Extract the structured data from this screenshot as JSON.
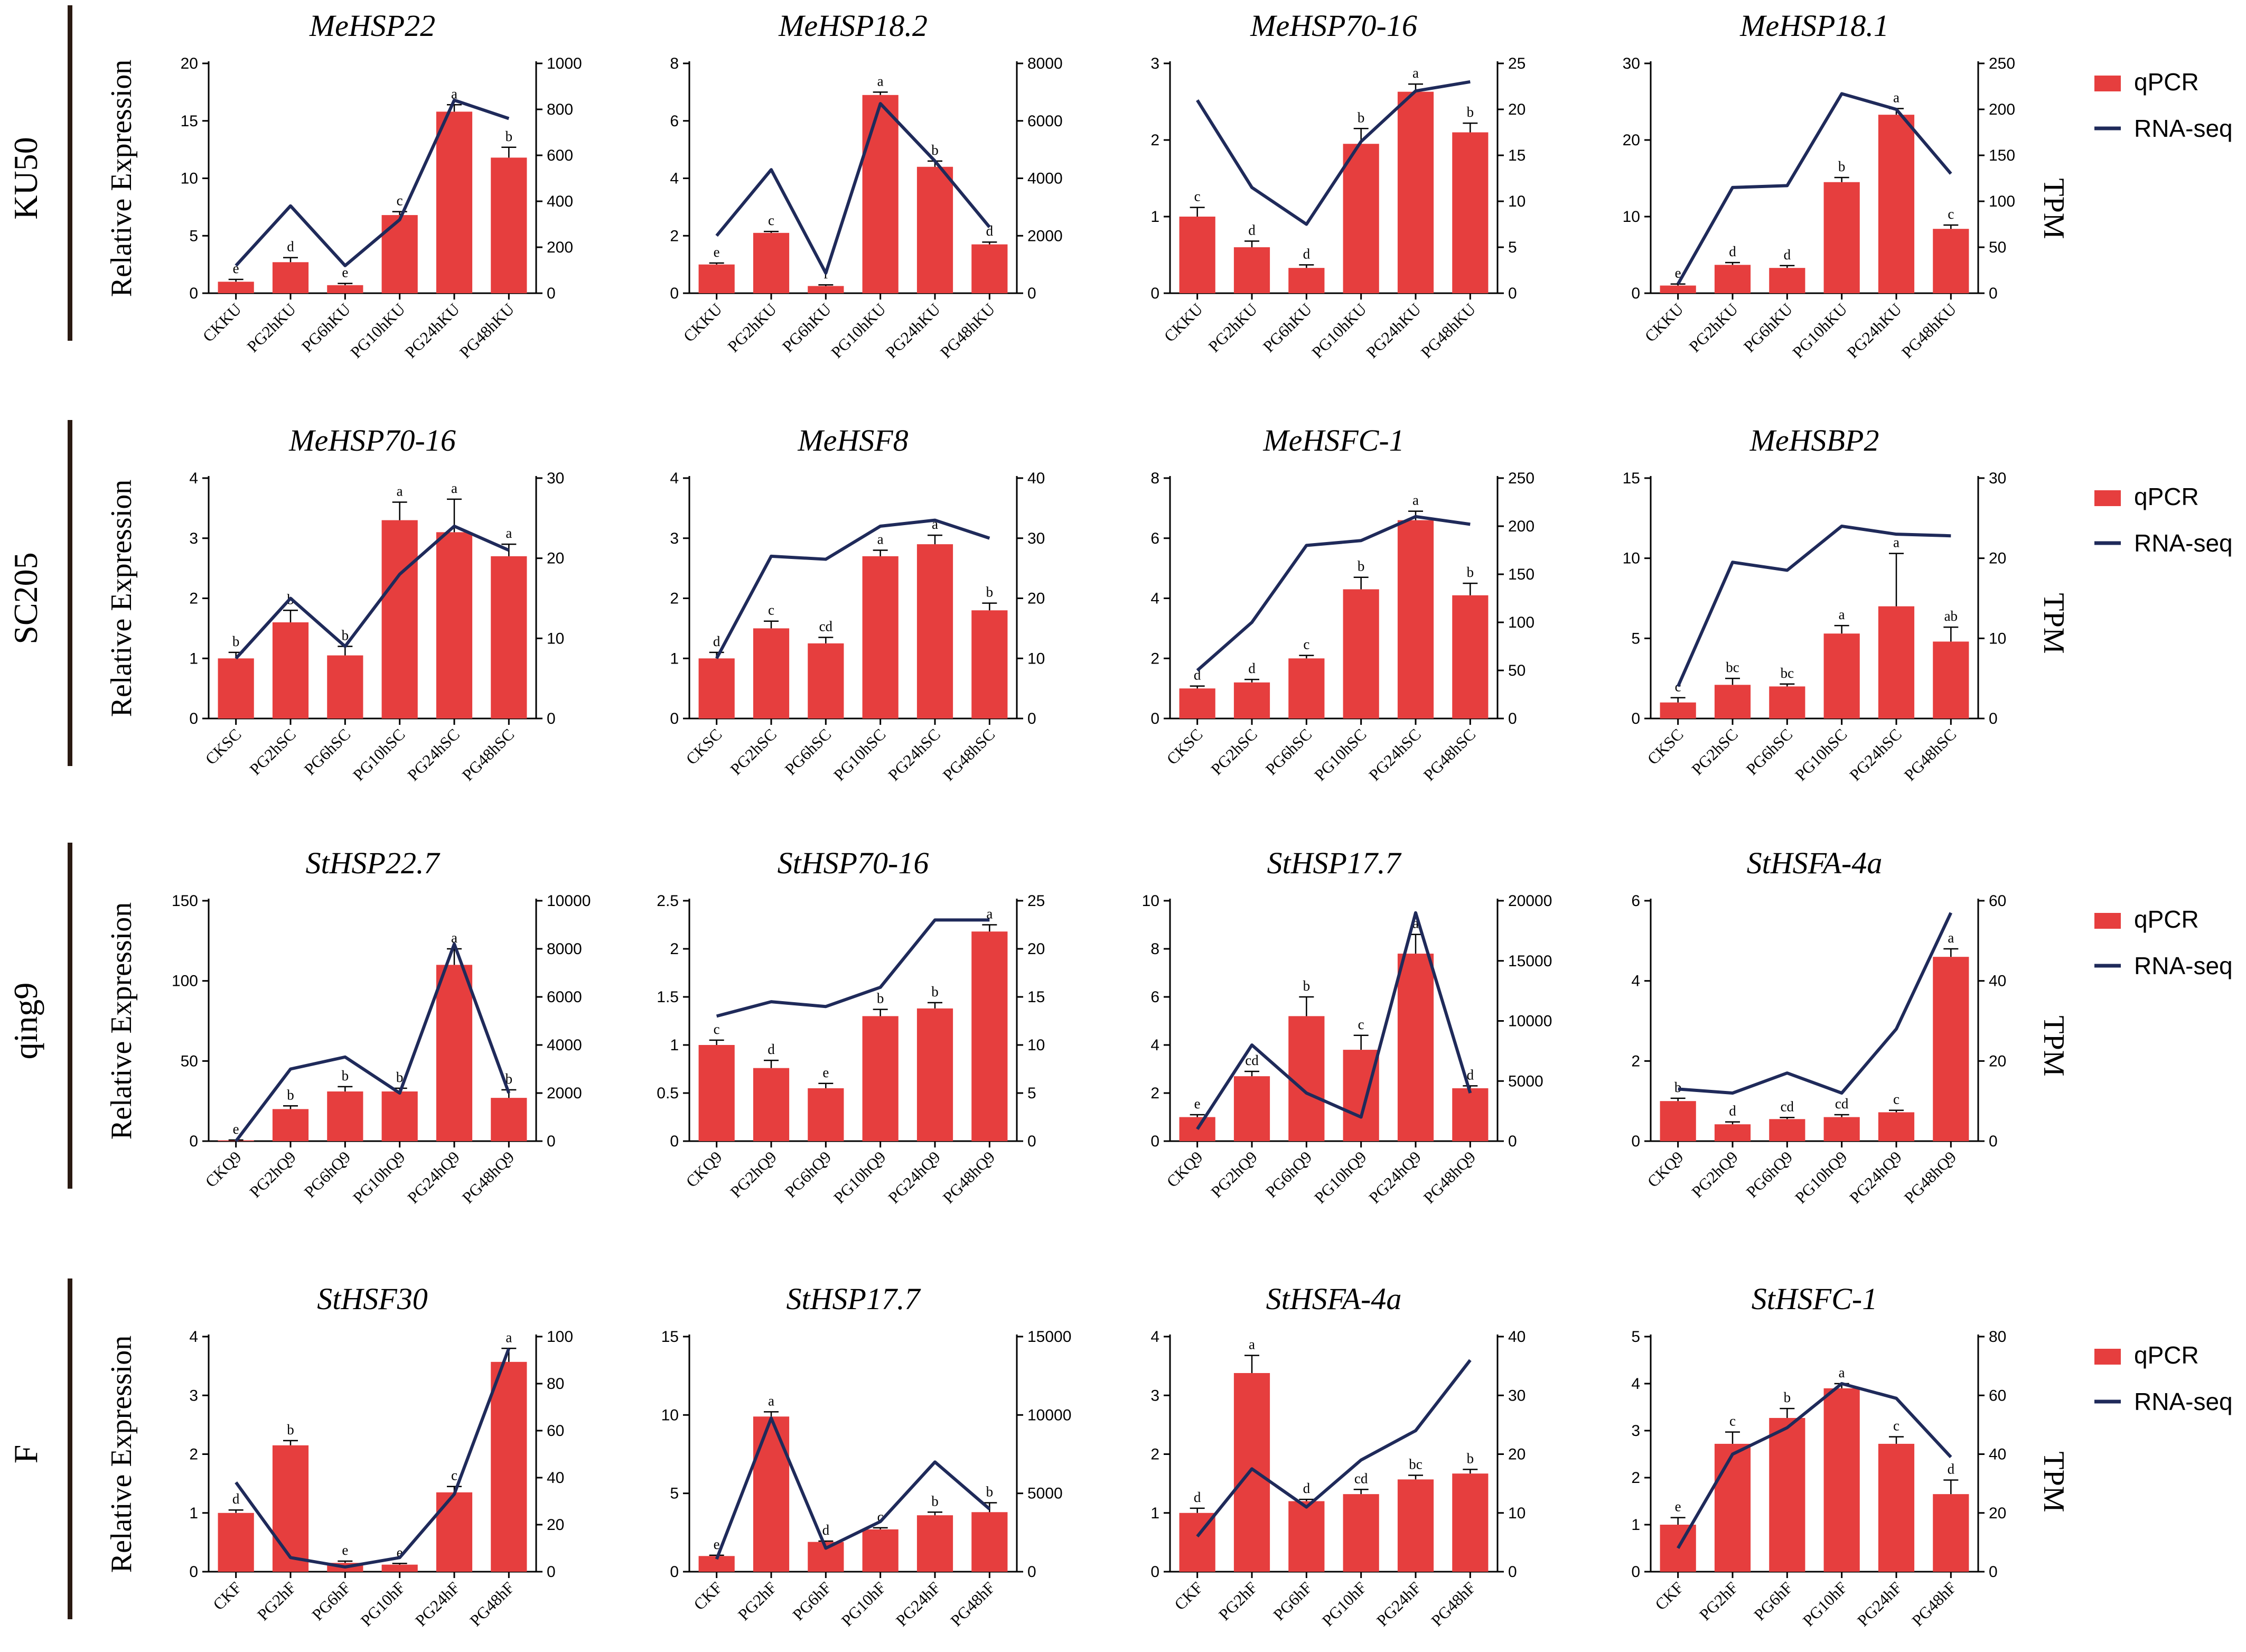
{
  "legend": {
    "qpcr": "qPCR",
    "rnaseq": "RNA-seq"
  },
  "colors": {
    "bar": "#e63e3e",
    "line": "#1f2a5a",
    "axis": "#000000",
    "divider": "#2a1a12"
  },
  "rows": [
    {
      "label": "KU50",
      "ylabel": "Relative Expression",
      "tpm_label": "TPM"
    },
    {
      "label": "SC205",
      "ylabel": "Relative Expression",
      "tpm_label": "TPM"
    },
    {
      "label": "qing9",
      "ylabel": "Relative Expression",
      "tpm_label": "TPM"
    },
    {
      "label": "F",
      "ylabel": "Relative Expression",
      "tpm_label": "TPM"
    }
  ],
  "chart_data": [
    {
      "type": "bar",
      "title": "MeHSP22",
      "categories": [
        "CKKU",
        "PG2hKU",
        "PG6hKU",
        "PG10hKU",
        "PG24hKU",
        "PG48hKU"
      ],
      "values": [
        1.0,
        2.7,
        0.7,
        6.8,
        15.8,
        11.8
      ],
      "errors": [
        0.2,
        0.4,
        0.15,
        0.3,
        0.6,
        0.9
      ],
      "letters": [
        "e",
        "d",
        "e",
        "c",
        "a",
        "b"
      ],
      "ylim": [
        0,
        20
      ],
      "yticks": [
        0,
        5,
        10,
        15,
        20
      ],
      "line": [
        120,
        380,
        120,
        320,
        840,
        760
      ],
      "y2lim": [
        0,
        1000
      ],
      "y2ticks": [
        0,
        200,
        400,
        600,
        800,
        1000
      ]
    },
    {
      "type": "bar",
      "title": "MeHSP18.2",
      "categories": [
        "CKKU",
        "PG2hKU",
        "PG6hKU",
        "PG10hKU",
        "PG24hKU",
        "PG48hKU"
      ],
      "values": [
        1.0,
        2.1,
        0.25,
        6.9,
        4.4,
        1.7
      ],
      "errors": [
        0.05,
        0.05,
        0.04,
        0.1,
        0.2,
        0.08
      ],
      "letters": [
        "e",
        "c",
        "f",
        "a",
        "b",
        "d"
      ],
      "ylim": [
        0,
        8
      ],
      "yticks": [
        0,
        2,
        4,
        6,
        8
      ],
      "line": [
        2000,
        4300,
        700,
        6600,
        4600,
        2300
      ],
      "y2lim": [
        0,
        8000
      ],
      "y2ticks": [
        0,
        2000,
        4000,
        6000,
        8000
      ]
    },
    {
      "type": "bar",
      "title": "MeHSP70-16",
      "categories": [
        "CKKU",
        "PG2hKU",
        "PG6hKU",
        "PG10hKU",
        "PG24hKU",
        "PG48hKU"
      ],
      "values": [
        1.0,
        0.6,
        0.33,
        1.95,
        2.63,
        2.1
      ],
      "errors": [
        0.12,
        0.08,
        0.04,
        0.2,
        0.1,
        0.12
      ],
      "letters": [
        "c",
        "d",
        "d",
        "b",
        "a",
        "b"
      ],
      "ylim": [
        0,
        3
      ],
      "yticks": [
        0,
        1,
        2,
        3
      ],
      "line": [
        21,
        11.5,
        7.5,
        16.5,
        22,
        23
      ],
      "y2lim": [
        0,
        25
      ],
      "y2ticks": [
        0,
        5,
        10,
        15,
        20,
        25
      ]
    },
    {
      "type": "bar",
      "title": "MeHSP18.1",
      "categories": [
        "CKKU",
        "PG2hKU",
        "PG6hKU",
        "PG10hKU",
        "PG24hKU",
        "PG48hKU"
      ],
      "values": [
        1.0,
        3.7,
        3.3,
        14.5,
        23.3,
        8.4
      ],
      "errors": [
        0.2,
        0.3,
        0.3,
        0.6,
        0.8,
        0.5
      ],
      "letters": [
        "e",
        "d",
        "d",
        "b",
        "a",
        "c"
      ],
      "ylim": [
        0,
        30
      ],
      "yticks": [
        0,
        10,
        20,
        30
      ],
      "line": [
        10,
        115,
        117,
        217,
        200,
        130
      ],
      "y2lim": [
        0,
        250
      ],
      "y2ticks": [
        0,
        50,
        100,
        150,
        200,
        250
      ]
    },
    {
      "type": "bar",
      "title": "MeHSP70-16",
      "categories": [
        "CKSC",
        "PG2hSC",
        "PG6hSC",
        "PG10hSC",
        "PG24hSC",
        "PG48hSC"
      ],
      "values": [
        1.0,
        1.6,
        1.05,
        3.3,
        3.1,
        2.7
      ],
      "errors": [
        0.1,
        0.2,
        0.15,
        0.3,
        0.55,
        0.2
      ],
      "letters": [
        "b",
        "b",
        "b",
        "a",
        "a",
        "a"
      ],
      "ylim": [
        0,
        4
      ],
      "yticks": [
        0,
        1,
        2,
        3,
        4
      ],
      "line": [
        7.5,
        15,
        9,
        18,
        24,
        21
      ],
      "y2lim": [
        0,
        30
      ],
      "y2ticks": [
        0,
        10,
        20,
        30
      ]
    },
    {
      "type": "bar",
      "title": "MeHSF8",
      "categories": [
        "CKSC",
        "PG2hSC",
        "PG6hSC",
        "PG10hSC",
        "PG24hSC",
        "PG48hSC"
      ],
      "values": [
        1.0,
        1.5,
        1.25,
        2.7,
        2.9,
        1.8
      ],
      "errors": [
        0.1,
        0.12,
        0.1,
        0.1,
        0.15,
        0.12
      ],
      "letters": [
        "d",
        "c",
        "cd",
        "a",
        "a",
        "b"
      ],
      "ylim": [
        0,
        4
      ],
      "yticks": [
        0,
        1,
        2,
        3,
        4
      ],
      "line": [
        10,
        27,
        26.5,
        32,
        33,
        30
      ],
      "y2lim": [
        0,
        40
      ],
      "y2ticks": [
        0,
        10,
        20,
        30,
        40
      ]
    },
    {
      "type": "bar",
      "title": "MeHSFC-1",
      "categories": [
        "CKSC",
        "PG2hSC",
        "PG6hSC",
        "PG10hSC",
        "PG24hSC",
        "PG48hSC"
      ],
      "values": [
        1.0,
        1.2,
        2.0,
        4.3,
        6.6,
        4.1
      ],
      "errors": [
        0.08,
        0.1,
        0.1,
        0.4,
        0.3,
        0.4
      ],
      "letters": [
        "d",
        "d",
        "c",
        "b",
        "a",
        "b"
      ],
      "ylim": [
        0,
        8
      ],
      "yticks": [
        0,
        2,
        4,
        6,
        8
      ],
      "line": [
        50,
        100,
        180,
        185,
        210,
        202
      ],
      "y2lim": [
        0,
        250
      ],
      "y2ticks": [
        0,
        50,
        100,
        150,
        200,
        250
      ]
    },
    {
      "type": "bar",
      "title": "MeHSBP2",
      "categories": [
        "CKSC",
        "PG2hSC",
        "PG6hSC",
        "PG10hSC",
        "PG24hSC",
        "PG48hSC"
      ],
      "values": [
        1.0,
        2.1,
        2.0,
        5.3,
        7.0,
        4.8
      ],
      "errors": [
        0.3,
        0.4,
        0.15,
        0.5,
        3.3,
        0.9
      ],
      "letters": [
        "c",
        "bc",
        "bc",
        "a",
        "a",
        "ab"
      ],
      "ylim": [
        0,
        15
      ],
      "yticks": [
        0,
        5,
        10,
        15
      ],
      "line": [
        4,
        19.5,
        18.5,
        24,
        23,
        22.8
      ],
      "y2lim": [
        0,
        30
      ],
      "y2ticks": [
        0,
        10,
        20,
        30
      ]
    },
    {
      "type": "bar",
      "title": "StHSP22.7",
      "categories": [
        "CKQ9",
        "PG2hQ9",
        "PG6hQ9",
        "PG10hQ9",
        "PG24hQ9",
        "PG48hQ9"
      ],
      "values": [
        0.5,
        20,
        31,
        31,
        110,
        27
      ],
      "errors": [
        0.2,
        2,
        3,
        2,
        10,
        5
      ],
      "letters": [
        "e",
        "b",
        "b",
        "b",
        "a",
        "b"
      ],
      "ylim": [
        0,
        150
      ],
      "yticks": [
        0,
        50,
        100,
        150
      ],
      "line": [
        0,
        3000,
        3500,
        2000,
        8200,
        2000
      ],
      "y2lim": [
        0,
        10000
      ],
      "y2ticks": [
        0,
        2000,
        4000,
        6000,
        8000,
        10000
      ]
    },
    {
      "type": "bar",
      "title": "StHSP70-16",
      "categories": [
        "CKQ9",
        "PG2hQ9",
        "PG6hQ9",
        "PG10hQ9",
        "PG24hQ9",
        "PG48hQ9"
      ],
      "values": [
        1.0,
        0.76,
        0.55,
        1.3,
        1.38,
        2.18
      ],
      "errors": [
        0.05,
        0.08,
        0.05,
        0.07,
        0.06,
        0.07
      ],
      "letters": [
        "c",
        "d",
        "e",
        "b",
        "b",
        "a"
      ],
      "ylim": [
        0,
        2.5
      ],
      "yticks": [
        0,
        0.5,
        1.0,
        1.5,
        2.0,
        2.5
      ],
      "line": [
        13,
        14.5,
        14,
        16,
        23,
        23
      ],
      "y2lim": [
        0,
        25
      ],
      "y2ticks": [
        0,
        5,
        10,
        15,
        20,
        25
      ]
    },
    {
      "type": "bar",
      "title": "StHSP17.7",
      "categories": [
        "CKQ9",
        "PG2hQ9",
        "PG6hQ9",
        "PG10hQ9",
        "PG24hQ9",
        "PG48hQ9"
      ],
      "values": [
        1.0,
        2.7,
        5.2,
        3.8,
        7.8,
        2.2
      ],
      "errors": [
        0.1,
        0.2,
        0.8,
        0.6,
        0.8,
        0.1
      ],
      "letters": [
        "e",
        "cd",
        "b",
        "c",
        "a",
        "d"
      ],
      "ylim": [
        0,
        10
      ],
      "yticks": [
        0,
        2,
        4,
        6,
        8,
        10
      ],
      "line": [
        1000,
        8000,
        4000,
        2000,
        19000,
        4000
      ],
      "y2lim": [
        0,
        20000
      ],
      "y2ticks": [
        0,
        5000,
        10000,
        15000,
        20000
      ]
    },
    {
      "type": "bar",
      "title": "StHSFA-4a",
      "categories": [
        "CKQ9",
        "PG2hQ9",
        "PG6hQ9",
        "PG10hQ9",
        "PG24hQ9",
        "PG48hQ9"
      ],
      "values": [
        1.0,
        0.42,
        0.55,
        0.6,
        0.72,
        4.6
      ],
      "errors": [
        0.07,
        0.06,
        0.04,
        0.06,
        0.05,
        0.2
      ],
      "letters": [
        "b",
        "d",
        "cd",
        "cd",
        "c",
        "a"
      ],
      "ylim": [
        0,
        6
      ],
      "yticks": [
        0,
        2,
        4,
        6
      ],
      "line": [
        13,
        12,
        17,
        12,
        28,
        57
      ],
      "y2lim": [
        0,
        60
      ],
      "y2ticks": [
        0,
        20,
        40,
        60
      ]
    },
    {
      "type": "bar",
      "title": "StHSF30",
      "categories": [
        "CKF",
        "PG2hF",
        "PG6hF",
        "PG10hF",
        "PG24hF",
        "PG48hF"
      ],
      "values": [
        1.0,
        2.15,
        0.15,
        0.12,
        1.35,
        3.57
      ],
      "errors": [
        0.05,
        0.08,
        0.03,
        0.02,
        0.1,
        0.23
      ],
      "letters": [
        "d",
        "b",
        "e",
        "e",
        "c",
        "a"
      ],
      "ylim": [
        0,
        4
      ],
      "yticks": [
        0,
        1,
        2,
        3,
        4
      ],
      "line": [
        38,
        6,
        2,
        6,
        33,
        95
      ],
      "y2lim": [
        0,
        100
      ],
      "y2ticks": [
        0,
        20,
        40,
        60,
        80,
        100
      ]
    },
    {
      "type": "bar",
      "title": "StHSP17.7",
      "categories": [
        "CKF",
        "PG2hF",
        "PG6hF",
        "PG10hF",
        "PG24hF",
        "PG48hF"
      ],
      "values": [
        1.0,
        9.9,
        1.9,
        2.7,
        3.6,
        3.8
      ],
      "errors": [
        0.05,
        0.3,
        0.05,
        0.1,
        0.2,
        0.6
      ],
      "letters": [
        "e",
        "a",
        "d",
        "c",
        "b",
        "b"
      ],
      "ylim": [
        0,
        15
      ],
      "yticks": [
        0,
        5,
        10,
        15
      ],
      "line": [
        800,
        9800,
        1500,
        3200,
        7000,
        4000
      ],
      "y2lim": [
        0,
        15000
      ],
      "y2ticks": [
        0,
        5000,
        10000,
        15000
      ]
    },
    {
      "type": "bar",
      "title": "StHSFA-4a",
      "categories": [
        "CKF",
        "PG2hF",
        "PG6hF",
        "PG10hF",
        "PG24hF",
        "PG48hF"
      ],
      "values": [
        1.0,
        3.38,
        1.2,
        1.32,
        1.57,
        1.67
      ],
      "errors": [
        0.08,
        0.3,
        0.03,
        0.08,
        0.07,
        0.07
      ],
      "letters": [
        "d",
        "a",
        "d",
        "cd",
        "bc",
        "b"
      ],
      "ylim": [
        0,
        4
      ],
      "yticks": [
        0,
        1,
        2,
        3,
        4
      ],
      "line": [
        6,
        17.5,
        11,
        19,
        24,
        36
      ],
      "y2lim": [
        0,
        40
      ],
      "y2ticks": [
        0,
        10,
        20,
        30,
        40
      ]
    },
    {
      "type": "bar",
      "title": "StHSFC-1",
      "categories": [
        "CKF",
        "PG2hF",
        "PG6hF",
        "PG10hF",
        "PG24hF",
        "PG48hF"
      ],
      "values": [
        1.0,
        2.72,
        3.27,
        3.9,
        2.72,
        1.65
      ],
      "errors": [
        0.15,
        0.25,
        0.2,
        0.1,
        0.15,
        0.3
      ],
      "letters": [
        "e",
        "c",
        "b",
        "a",
        "c",
        "d"
      ],
      "ylim": [
        0,
        5
      ],
      "yticks": [
        0,
        1,
        2,
        3,
        4,
        5
      ],
      "line": [
        8,
        40,
        49,
        64,
        59,
        39
      ],
      "y2lim": [
        0,
        80
      ],
      "y2ticks": [
        0,
        20,
        40,
        60,
        80
      ]
    }
  ]
}
